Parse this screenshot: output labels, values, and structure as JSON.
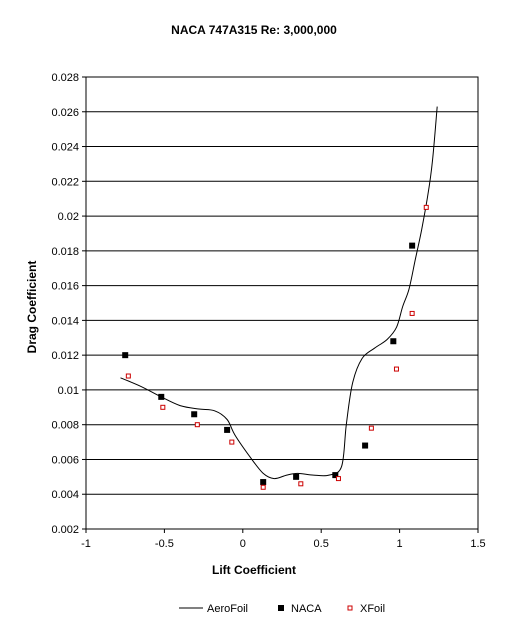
{
  "chart_data": {
    "type": "scatter",
    "title": "NACA 747A315 Re: 3,000,000",
    "xlabel": "Lift Coefficient",
    "ylabel": "Drag Coefficient",
    "xlim": [
      -1,
      1.5
    ],
    "ylim": [
      0.002,
      0.028
    ],
    "x_ticks": [
      -1,
      -0.5,
      0,
      0.5,
      1,
      1.5
    ],
    "x_tick_labels": [
      "-1",
      "-0.5",
      "0",
      "0.5",
      "1",
      "1.5"
    ],
    "y_ticks": [
      0.002,
      0.004,
      0.006,
      0.008,
      0.01,
      0.012,
      0.014,
      0.016,
      0.018,
      0.02,
      0.022,
      0.024,
      0.026,
      0.028
    ],
    "y_tick_labels": [
      "0.002",
      "0.004",
      "0.006",
      "0.008",
      "0.01",
      "0.012",
      "0.014",
      "0.016",
      "0.018",
      "0.02",
      "0.022",
      "0.024",
      "0.026",
      "0.028"
    ],
    "grid": "horizontal",
    "legend_position": "bottom",
    "series": [
      {
        "name": "AeroFoil",
        "style": "line",
        "color": "#000000",
        "x": [
          -0.78,
          -0.65,
          -0.52,
          -0.4,
          -0.28,
          -0.18,
          -0.1,
          -0.05,
          0.05,
          0.13,
          0.2,
          0.28,
          0.35,
          0.45,
          0.55,
          0.63,
          0.66,
          0.7,
          0.76,
          0.84,
          0.92,
          0.98,
          1.02,
          1.06,
          1.1,
          1.14,
          1.18,
          1.21,
          1.24
        ],
        "y": [
          0.0107,
          0.0102,
          0.0096,
          0.0091,
          0.0089,
          0.0088,
          0.0083,
          0.0074,
          0.0061,
          0.0052,
          0.0049,
          0.0051,
          0.0052,
          0.0051,
          0.0051,
          0.0056,
          0.008,
          0.0104,
          0.0118,
          0.0124,
          0.0129,
          0.0136,
          0.0148,
          0.0158,
          0.0175,
          0.0192,
          0.0212,
          0.0232,
          0.0263
        ]
      },
      {
        "name": "NACA",
        "style": "marker-filled-square",
        "color": "#000000",
        "x": [
          -0.75,
          -0.52,
          -0.31,
          -0.1,
          0.13,
          0.34,
          0.59,
          0.78,
          0.96,
          1.08
        ],
        "y": [
          0.012,
          0.0096,
          0.0086,
          0.0077,
          0.0047,
          0.005,
          0.0051,
          0.0068,
          0.0128,
          0.0183
        ]
      },
      {
        "name": "XFoil",
        "style": "marker-hollow-square",
        "color": "#cc0000",
        "x": [
          -0.73,
          -0.51,
          -0.29,
          -0.07,
          0.13,
          0.37,
          0.61,
          0.82,
          0.98,
          1.08,
          1.17
        ],
        "y": [
          0.0108,
          0.009,
          0.008,
          0.007,
          0.0044,
          0.0046,
          0.0049,
          0.0078,
          0.0112,
          0.0144,
          0.0205
        ]
      }
    ]
  }
}
